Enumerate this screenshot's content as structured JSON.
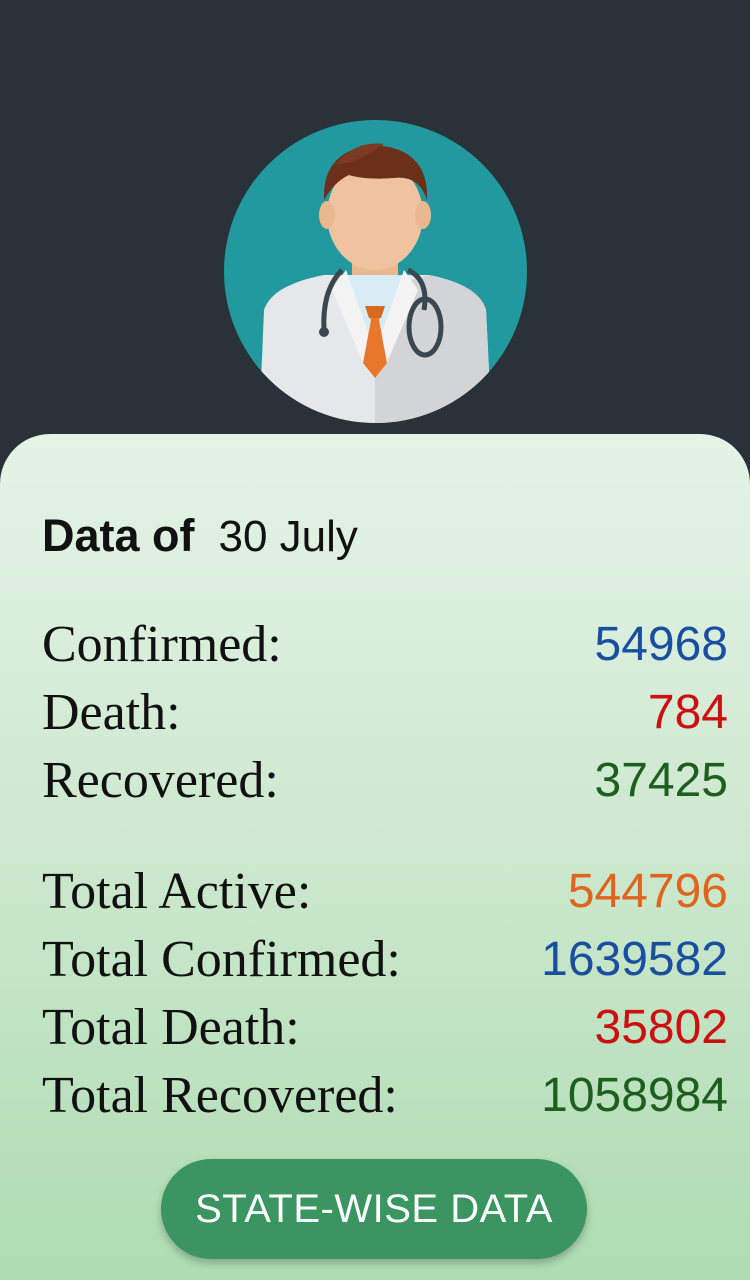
{
  "header": {
    "avatar_icon": "doctor-avatar-icon"
  },
  "summary": {
    "date_label": "Data of",
    "date_value": "30 July"
  },
  "daily": [
    {
      "label": "Confirmed:",
      "value": "54968",
      "color": "#1a4fa0"
    },
    {
      "label": "Death:",
      "value": "784",
      "color": "#cc0f10"
    },
    {
      "label": "Recovered:",
      "value": "37425",
      "color": "#1e5f20"
    }
  ],
  "totals": [
    {
      "label": "Total Active:",
      "value": "544796",
      "color": "#e0651c"
    },
    {
      "label": "Total Confirmed:",
      "value": "1639582",
      "color": "#1a4fa0"
    },
    {
      "label": "Total Death:",
      "value": "35802",
      "color": "#cc0f10"
    },
    {
      "label": "Total Recovered:",
      "value": "1058984",
      "color": "#1e5f20"
    }
  ],
  "actions": {
    "state_wise_label": "STATE-WISE DATA"
  }
}
